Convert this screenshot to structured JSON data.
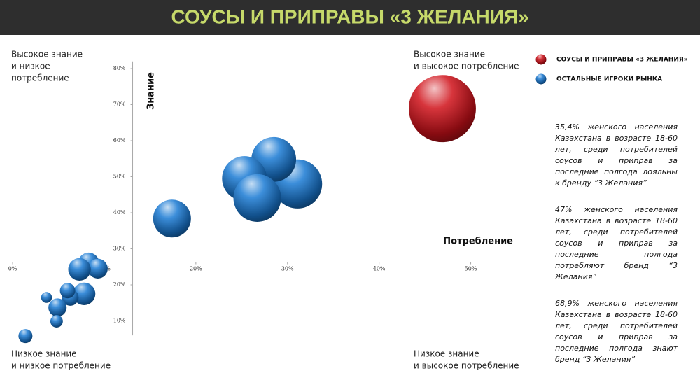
{
  "chart_data": {
    "type": "bubble",
    "title": "СОУСЫ И ПРИПРАВЫ «3 ЖЕЛАНИЯ»",
    "x_label": "Потребление",
    "y_label": "Знание",
    "xlim": [
      -0.5,
      55
    ],
    "ylim": [
      6,
      82
    ],
    "x_axis_at": 26.3,
    "y_axis_at": 13.1,
    "xticks": [
      {
        "value": 0,
        "label": "0%"
      },
      {
        "value": 10,
        "label": "10%"
      },
      {
        "value": 20,
        "label": "20%"
      },
      {
        "value": 30,
        "label": "30%"
      },
      {
        "value": 40,
        "label": "40%"
      },
      {
        "value": 50,
        "label": "50%"
      }
    ],
    "yticks": [
      {
        "value": 10,
        "label": "10%"
      },
      {
        "value": 20,
        "label": "20%"
      },
      {
        "value": 30,
        "label": "30%"
      },
      {
        "value": 40,
        "label": "40%"
      },
      {
        "value": 50,
        "label": "50%"
      },
      {
        "value": 60,
        "label": "60%"
      },
      {
        "value": 70,
        "label": "70%"
      },
      {
        "value": 80,
        "label": "80%"
      }
    ],
    "series": [
      {
        "name": "СОУСЫ И ПРИПРАВЫ «3 ЖЕЛАНИЯ»",
        "color": "#d0111a",
        "x": [
          46.9
        ],
        "y": [
          68.9
        ],
        "size": [
          230
        ]
      },
      {
        "name": "ОСТАЛЬНЫЕ ИГРОКИ РЫНКА",
        "color": "#1a7ad4",
        "x": [
          31.1,
          28.5,
          25.3,
          26.7,
          17.4,
          8.3,
          9.3,
          7.3,
          7.8,
          6.3,
          6.0,
          4.9,
          3.7,
          4.8,
          1.4
        ],
        "y": [
          48.0,
          54.8,
          49.5,
          44.1,
          38.4,
          26.0,
          24.5,
          24.3,
          17.5,
          16.5,
          18.4,
          13.7,
          16.5,
          9.9,
          5.8
        ],
        "size": [
          123,
          102,
          102,
          116,
          73,
          23,
          20,
          26,
          26,
          14,
          12,
          17,
          6,
          8,
          10
        ]
      }
    ],
    "quadrant_labels": {
      "top_left": [
        "Высокое знание",
        "и низкое",
        "потребление"
      ],
      "top_right": [
        "Высокое знание",
        "и высокое потребление"
      ],
      "bottom_left": [
        "Низкое знание",
        "и низкое потребление"
      ],
      "bottom_right": [
        "Низкое знание",
        "и высокое потребление"
      ]
    },
    "notes": [
      "35,4% женского населения Казахстана в возрасте 18-60 лет, среди потребителей соусов и приправ за последние полгода лояльны к бренду “3 Желания”",
      "47% женского населения Казахстана в возрасте 18-60 лет, среди потребителей соусов и приправ за последние полгода потребляют бренд “3 Желания”",
      "68,9% женского населения Казахстана в возрасте 18-60 лет, среди потребителей соусов и приправ за последние полгода знают бренд “3 Желания”"
    ]
  }
}
